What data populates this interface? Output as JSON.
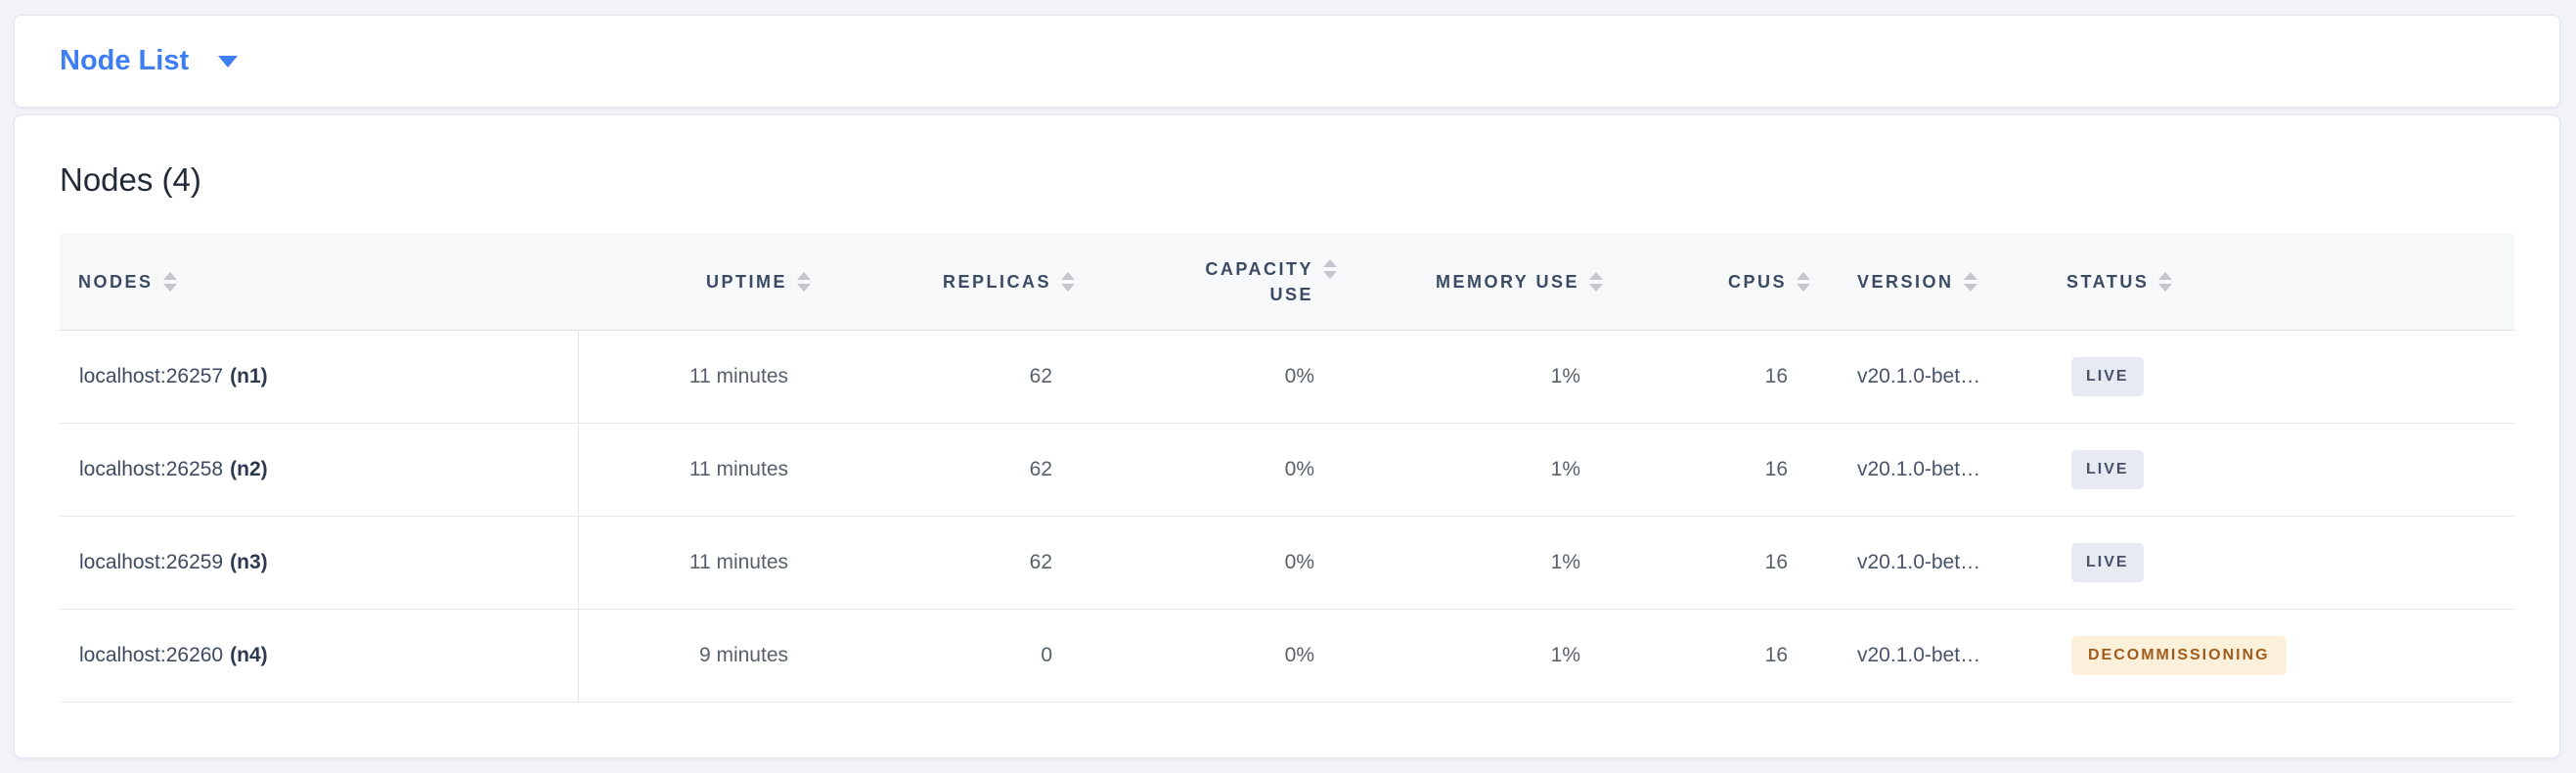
{
  "toolbar": {
    "view_label": "Node List",
    "caret_icon": "caret-down"
  },
  "heading": {
    "title": "Nodes (4)"
  },
  "table": {
    "columns": [
      {
        "key": "nodes",
        "label": "NODES",
        "align": "left"
      },
      {
        "key": "uptime",
        "label": "UPTIME",
        "align": "right"
      },
      {
        "key": "replicas",
        "label": "REPLICAS",
        "align": "right"
      },
      {
        "key": "capacity_use",
        "label": "CAPACITY USE",
        "align": "right",
        "wrap": true
      },
      {
        "key": "memory_use",
        "label": "MEMORY USE",
        "align": "right"
      },
      {
        "key": "cpus",
        "label": "CPUS",
        "align": "right"
      },
      {
        "key": "version",
        "label": "VERSION",
        "align": "left"
      },
      {
        "key": "status",
        "label": "STATUS",
        "align": "left"
      }
    ],
    "rows": [
      {
        "address": "localhost:26257",
        "node_id": "(n1)",
        "uptime": "11 minutes",
        "replicas": "62",
        "capacity_use": "0%",
        "memory_use": "1%",
        "cpus": "16",
        "version": "v20.1.0-bet…",
        "status": {
          "label": "LIVE",
          "type": "live"
        }
      },
      {
        "address": "localhost:26258",
        "node_id": "(n2)",
        "uptime": "11 minutes",
        "replicas": "62",
        "capacity_use": "0%",
        "memory_use": "1%",
        "cpus": "16",
        "version": "v20.1.0-bet…",
        "status": {
          "label": "LIVE",
          "type": "live"
        }
      },
      {
        "address": "localhost:26259",
        "node_id": "(n3)",
        "uptime": "11 minutes",
        "replicas": "62",
        "capacity_use": "0%",
        "memory_use": "1%",
        "cpus": "16",
        "version": "v20.1.0-bet…",
        "status": {
          "label": "LIVE",
          "type": "live"
        }
      },
      {
        "address": "localhost:26260",
        "node_id": "(n4)",
        "uptime": "9 minutes",
        "replicas": "0",
        "capacity_use": "0%",
        "memory_use": "1%",
        "cpus": "16",
        "version": "v20.1.0-bet…",
        "status": {
          "label": "DECOMMISSIONING",
          "type": "decommissioning"
        }
      }
    ]
  },
  "colors": {
    "accent": "#3d7ef2",
    "status_live_bg": "#e7eaf2",
    "status_live_text": "#475269",
    "status_decommissioning_bg": "#fcf0da",
    "status_decommissioning_text": "#a05c1c"
  }
}
